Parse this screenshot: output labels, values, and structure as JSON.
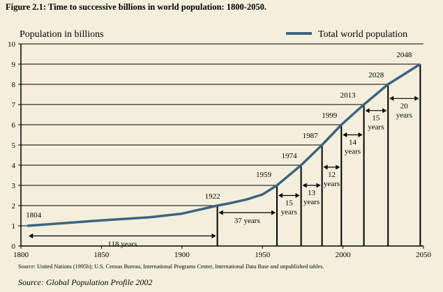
{
  "figure_title": "Figure 2.1: Time to successive billions in world population: 1800-2050.",
  "source_note": "Source: United Nations (1995b); U.S. Census Bureau, International Programs Center, International Data Base and unpublished tables.",
  "source_credit": "Source: Global Population Profile 2002",
  "colors": {
    "background": "#f4efdc",
    "series_line": "#3d6480",
    "axis": "#000000"
  },
  "chart_data": {
    "type": "line",
    "title": "",
    "xlabel": "",
    "ylabel": "Population in billions",
    "xlim": [
      1800,
      2050
    ],
    "ylim": [
      0,
      10
    ],
    "x_ticks": [
      1800,
      1850,
      1900,
      1950,
      2000,
      2050
    ],
    "y_ticks": [
      0,
      1,
      2,
      3,
      4,
      5,
      6,
      7,
      8,
      9,
      10
    ],
    "grid": "horizontal lines at each billion up to each milestone",
    "legend": "top-right",
    "series": [
      {
        "name": "Total world population",
        "x": [
          1804,
          1850,
          1880,
          1900,
          1922,
          1930,
          1940,
          1950,
          1959,
          1974,
          1987,
          1999,
          2013,
          2028,
          2048
        ],
        "values": [
          1.0,
          1.27,
          1.42,
          1.6,
          2.0,
          2.12,
          2.3,
          2.55,
          3.0,
          4.0,
          5.0,
          6.0,
          7.0,
          8.0,
          9.0
        ]
      }
    ],
    "milestones": [
      {
        "year": 1804,
        "billions": 1,
        "label": "1804"
      },
      {
        "year": 1922,
        "billions": 2,
        "label": "1922"
      },
      {
        "year": 1959,
        "billions": 3,
        "label": "1959"
      },
      {
        "year": 1974,
        "billions": 4,
        "label": "1974"
      },
      {
        "year": 1987,
        "billions": 5,
        "label": "1987"
      },
      {
        "year": 1999,
        "billions": 6,
        "label": "1999"
      },
      {
        "year": 2013,
        "billions": 7,
        "label": "2013"
      },
      {
        "year": 2028,
        "billions": 8,
        "label": "2028"
      },
      {
        "year": 2048,
        "billions": 9,
        "label": "2048"
      }
    ],
    "intervals": [
      {
        "from": 1804,
        "to": 1922,
        "label": [
          "118 years"
        ]
      },
      {
        "from": 1922,
        "to": 1959,
        "label": [
          "37 years"
        ]
      },
      {
        "from": 1959,
        "to": 1974,
        "label": [
          "15",
          "years"
        ]
      },
      {
        "from": 1974,
        "to": 1987,
        "label": [
          "13",
          "years"
        ]
      },
      {
        "from": 1987,
        "to": 1999,
        "label": [
          "12",
          "years"
        ]
      },
      {
        "from": 1999,
        "to": 2013,
        "label": [
          "14",
          "years"
        ]
      },
      {
        "from": 2013,
        "to": 2028,
        "label": [
          "15",
          "years"
        ]
      },
      {
        "from": 2028,
        "to": 2048,
        "label": [
          "20",
          "years"
        ]
      }
    ]
  }
}
